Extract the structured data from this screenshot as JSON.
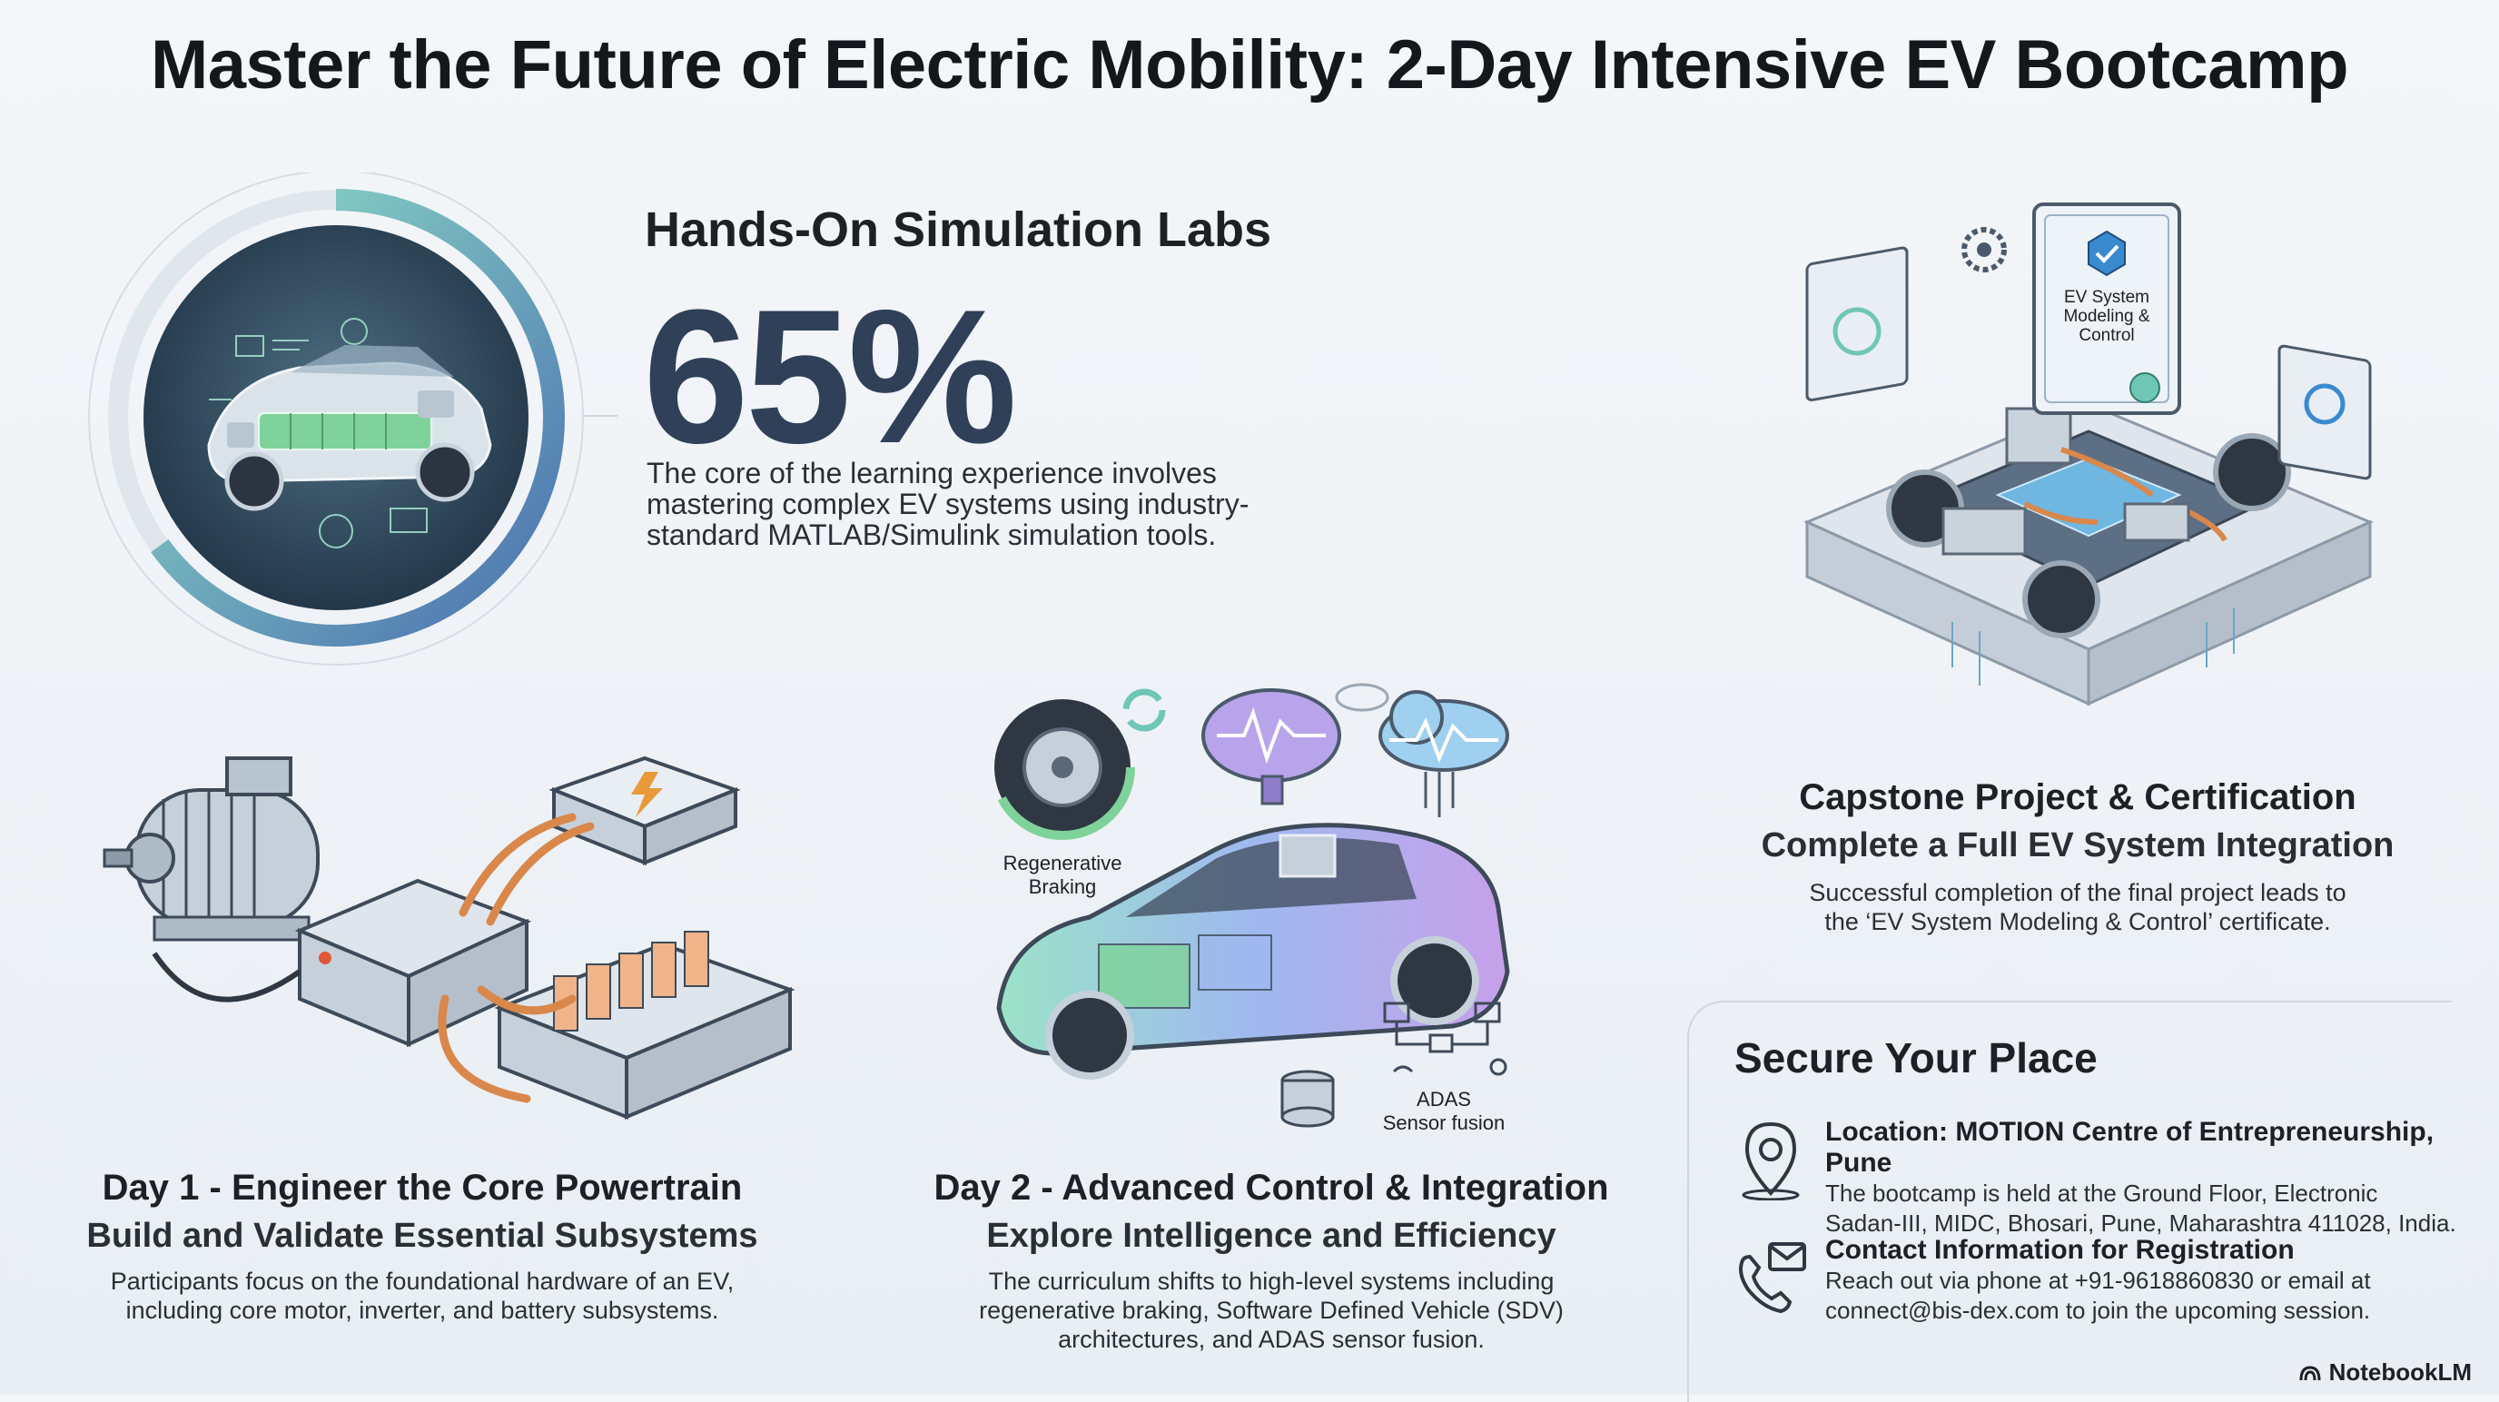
{
  "title": "Master the Future of Electric Mobility: 2-Day Intensive EV Bootcamp",
  "simulation": {
    "heading": "Hands-On Simulation Labs",
    "stat": "65%",
    "stat_fraction": 0.65,
    "body": "The core of the learning experience involves mastering complex EV systems using industry-standard MATLAB/Simulink simulation tools."
  },
  "capstone": {
    "heading": "Capstone Project & Certification",
    "subheading": "Complete a Full EV System Integration",
    "body_line1": "Successful completion of the final project leads to",
    "body_line2": "the ‘EV System Modeling & Control’ certificate.",
    "certificate_text": [
      "EV System",
      "Modeling &",
      "Control"
    ]
  },
  "day1": {
    "heading": "Day 1 - Engineer the Core Powertrain",
    "subheading": "Build and Validate Essential Subsystems",
    "body_line1": "Participants focus on the foundational hardware of an EV,",
    "body_line2": "including core motor, inverter, and battery subsystems."
  },
  "day2": {
    "heading": "Day 2 - Advanced Control & Integration",
    "subheading": "Explore Intelligence and Efficiency",
    "body_line1": "The curriculum shifts to high-level systems including",
    "body_line2": "regenerative braking, Software Defined Vehicle (SDV)",
    "body_line3": "architectures, and ADAS sensor fusion.",
    "label_regen": [
      "Regenerative",
      "Braking"
    ],
    "label_adas": [
      "ADAS",
      "Sensor fusion"
    ]
  },
  "secure": {
    "heading": "Secure Your Place",
    "location_label": "Location: MOTION Centre of Entrepreneurship, Pune",
    "location_line1": "The bootcamp is held at the Ground Floor, Electronic",
    "location_line2": "Sadan-III, MIDC, Bhosari, Pune, Maharashtra 411028, India.",
    "contact_label": "Contact Information for Registration",
    "contact_line1": "Reach out via phone at +91-9618860830 or email at",
    "contact_line2": "connect@bis-dex.com to join the upcoming session."
  },
  "brand": "NotebookLM",
  "icons": {
    "location": "map-pin-icon",
    "contact": "phone-mail-icon",
    "brand": "notebooklm-logo-icon"
  },
  "colors": {
    "accent_teal": "#6fc7b5",
    "accent_blue": "#5a7fb8",
    "dark_navy": "#2f4058",
    "copper": "#d9874a",
    "battery_green": "#7fd29a"
  }
}
